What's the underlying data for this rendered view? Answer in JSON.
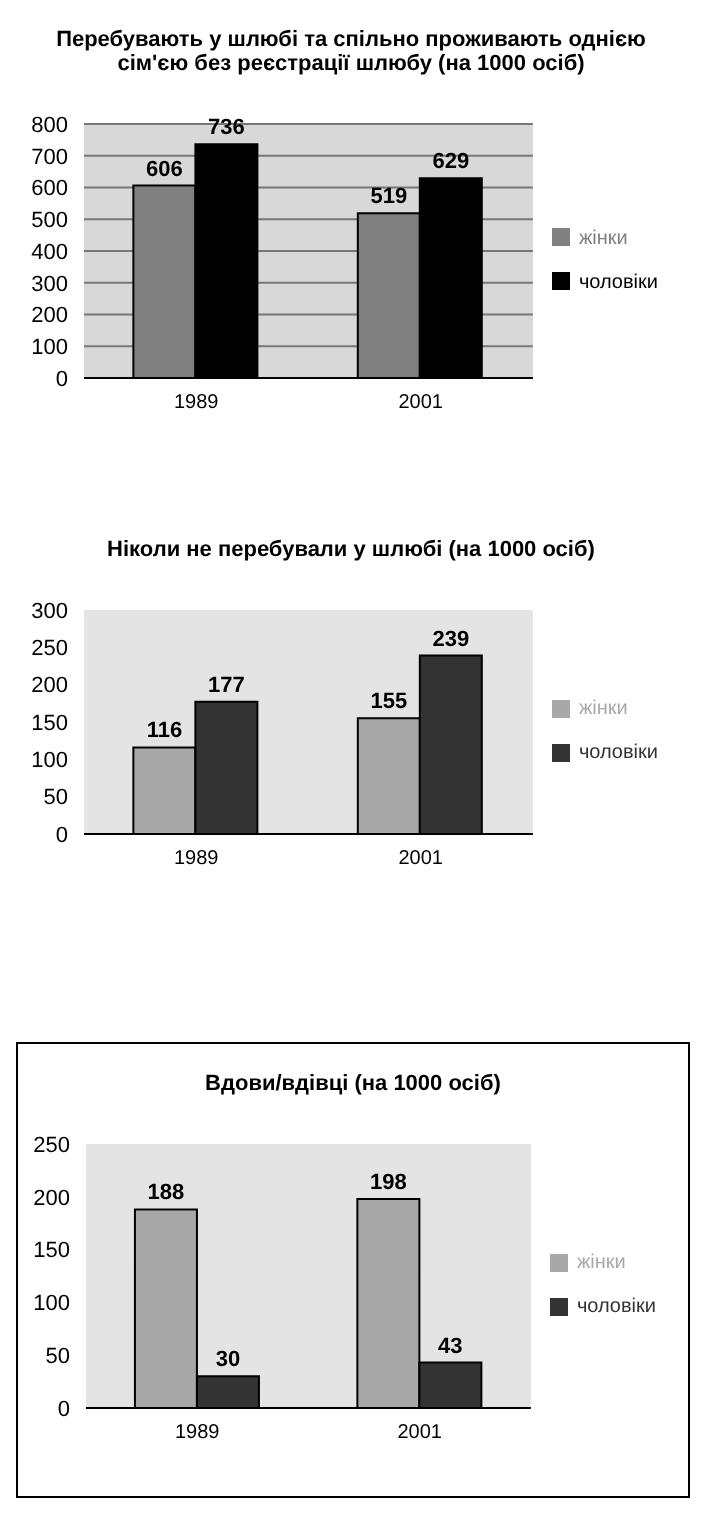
{
  "chart_data": [
    {
      "type": "bar",
      "title": "Перебувають у шлюбі та спільно проживають однією сім'єю без реєстрації шлюбу (на 1000 осіб)",
      "categories": [
        "1989",
        "2001"
      ],
      "series": [
        {
          "name": "жінки",
          "color": "#808080",
          "values": [
            606,
            519
          ]
        },
        {
          "name": "чоловіки",
          "color": "#000000",
          "values": [
            736,
            629
          ]
        }
      ],
      "ylim": [
        0,
        800
      ],
      "yticks": [
        0,
        100,
        200,
        300,
        400,
        500,
        600,
        700,
        800
      ],
      "grid": "y",
      "legend": "right",
      "data_labels": true
    },
    {
      "type": "bar",
      "title": "Ніколи не перебували у шлюбі (на 1000 осіб)",
      "categories": [
        "1989",
        "2001"
      ],
      "series": [
        {
          "name": "жінки",
          "color": "#a8a8a8",
          "values": [
            116,
            155
          ]
        },
        {
          "name": "чоловіки",
          "color": "#333333",
          "values": [
            177,
            239
          ]
        }
      ],
      "ylim": [
        0,
        300
      ],
      "yticks": [
        0,
        50,
        100,
        150,
        200,
        250,
        300
      ],
      "legend": "right",
      "data_labels": true
    },
    {
      "type": "bar",
      "title": "Вдови/вдівці (на 1000 осіб)",
      "categories": [
        "1989",
        "2001"
      ],
      "series": [
        {
          "name": "жінки",
          "color": "#a8a8a8",
          "values": [
            188,
            198
          ]
        },
        {
          "name": "чоловіки",
          "color": "#333333",
          "values": [
            30,
            43
          ]
        }
      ],
      "ylim": [
        0,
        250
      ],
      "yticks": [
        0,
        50,
        100,
        150,
        200,
        250
      ],
      "legend": "right",
      "data_labels": true
    }
  ]
}
